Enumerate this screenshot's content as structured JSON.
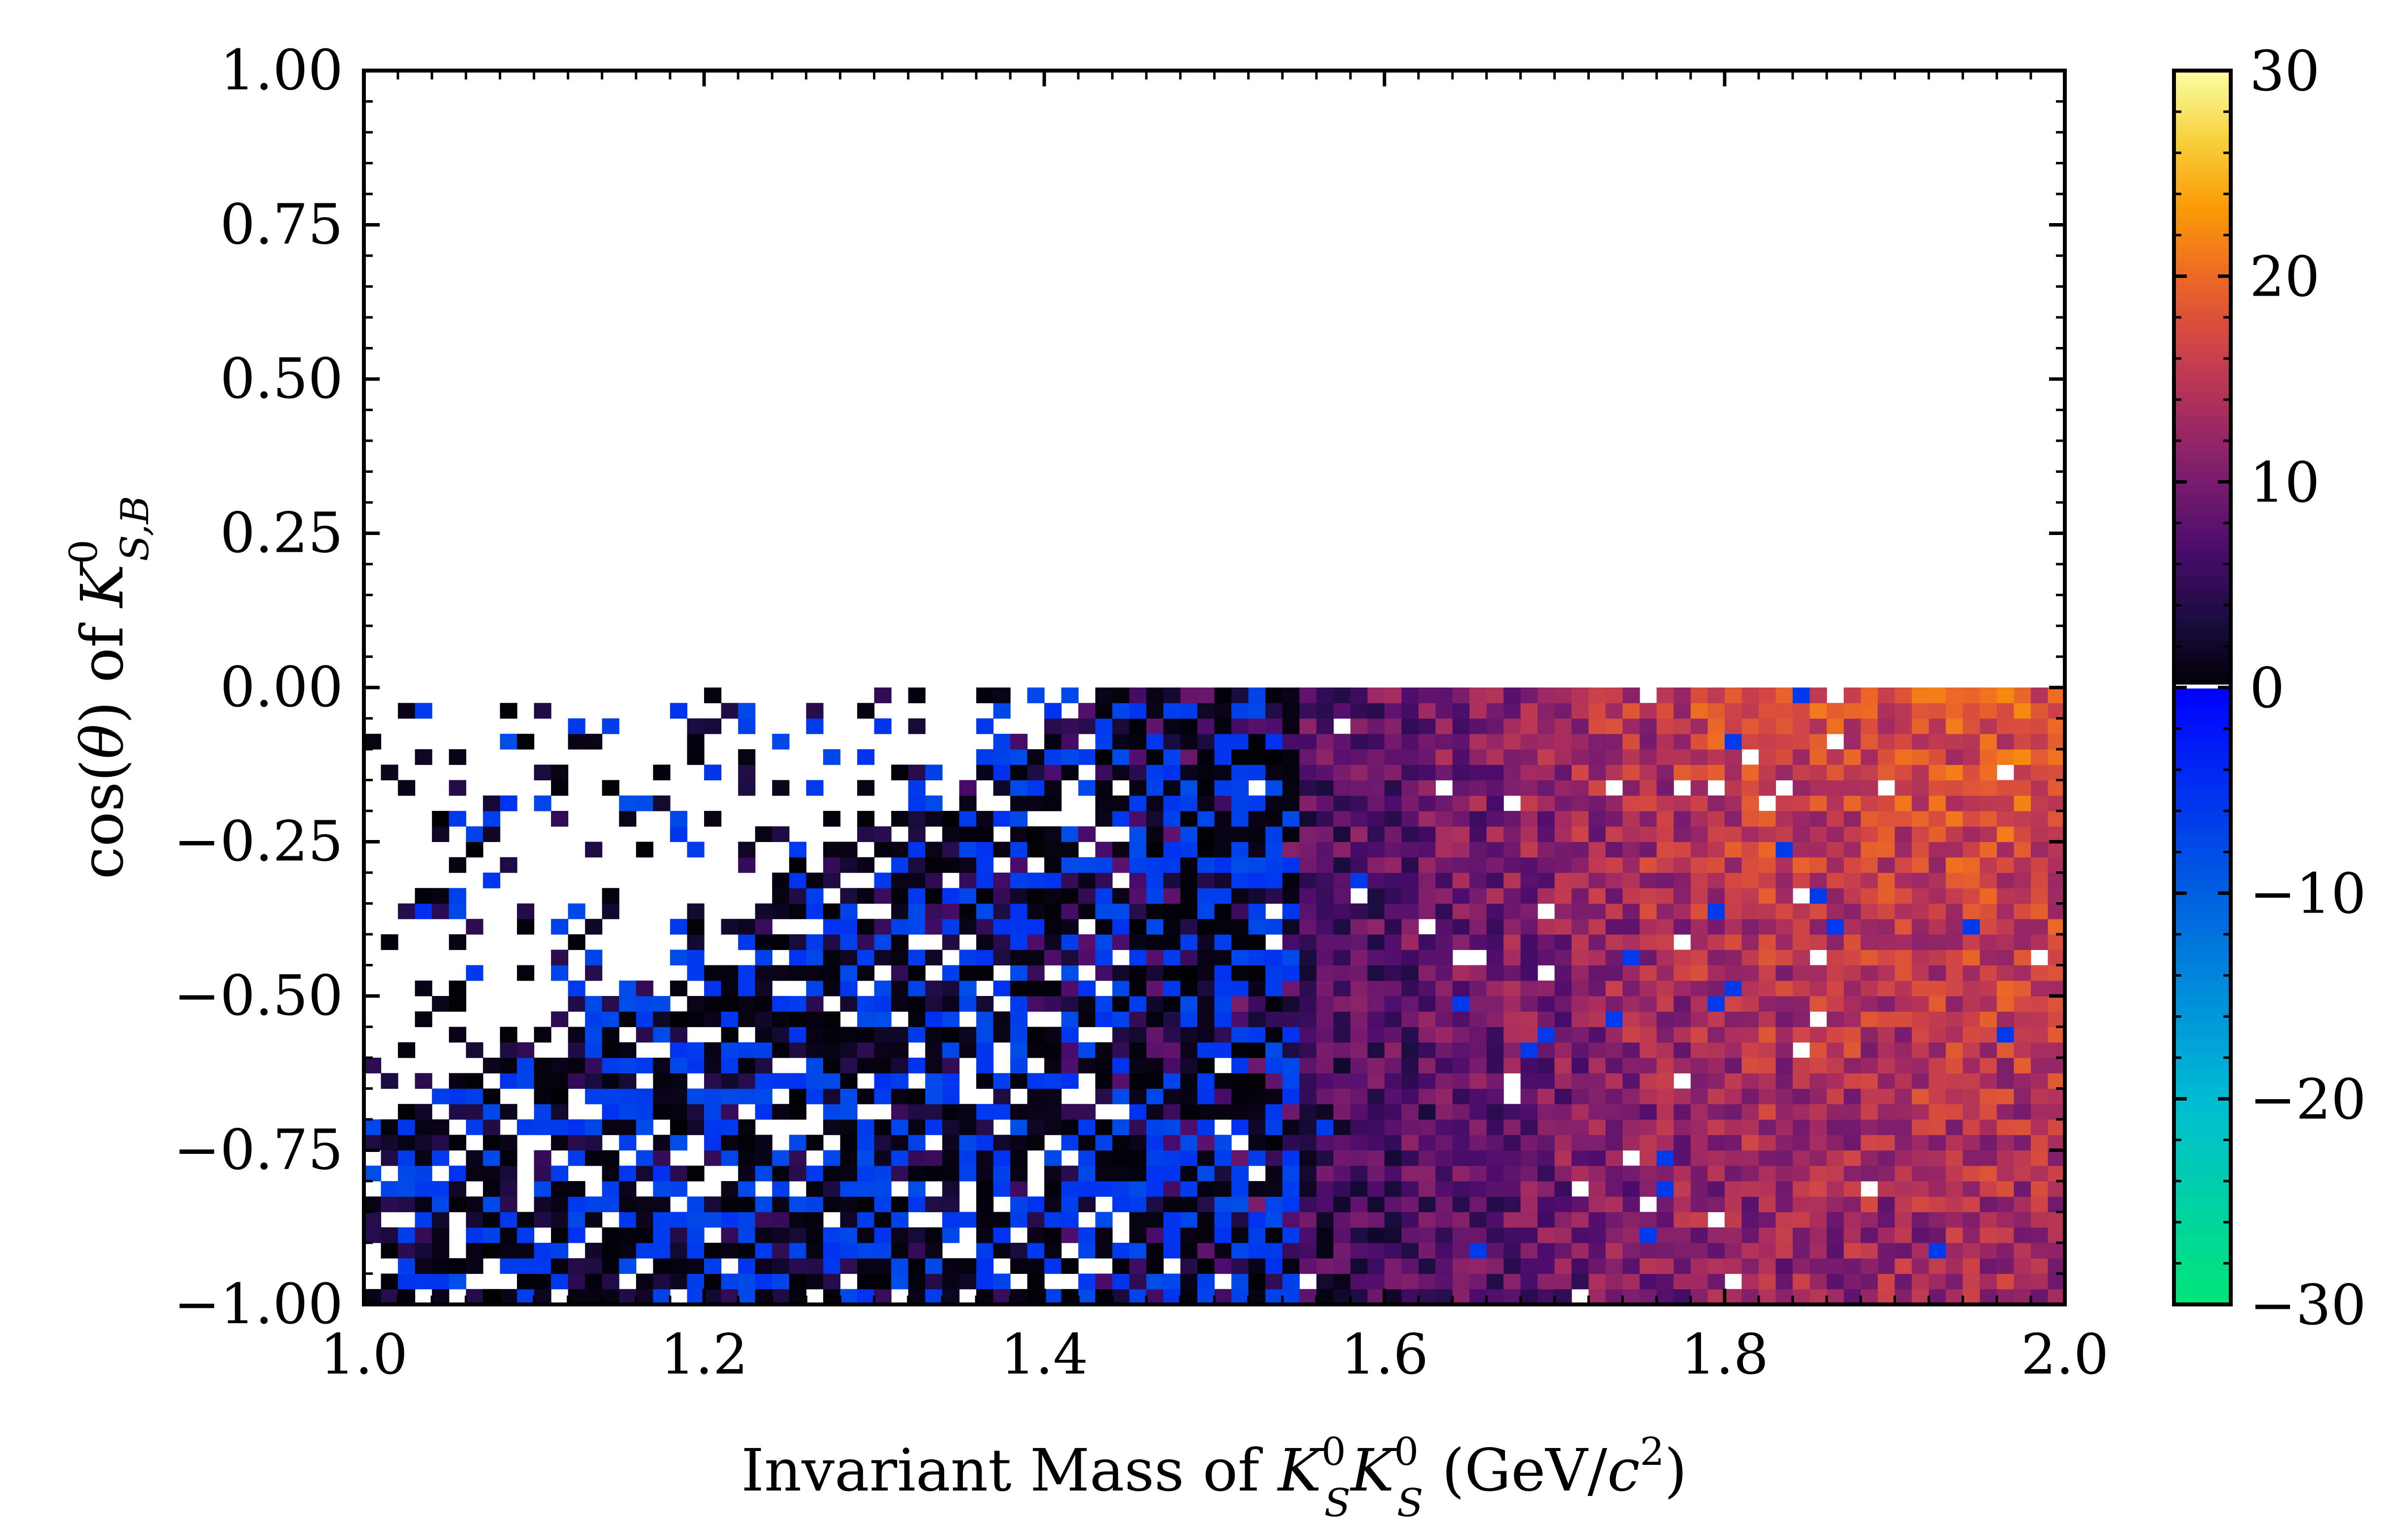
{
  "chart_data": {
    "type": "heatmap",
    "title": "",
    "xlabel": {
      "parts": [
        "Invariant Mass of ",
        "K",
        "0",
        "S",
        "K",
        "0",
        "S",
        " (GeV/",
        "c",
        "2",
        ")"
      ]
    },
    "ylabel": {
      "parts": [
        "cos(",
        "θ",
        ") of ",
        "K",
        "0",
        "S,B"
      ]
    },
    "xlim": [
      1.0,
      2.0
    ],
    "ylim": [
      -1.0,
      1.0
    ],
    "x_ticks": [
      1.0,
      1.2,
      1.4,
      1.6,
      1.8,
      2.0
    ],
    "x_tick_labels": [
      "1.0",
      "1.2",
      "1.4",
      "1.6",
      "1.8",
      "2.0"
    ],
    "y_ticks": [
      1.0,
      0.75,
      0.5,
      0.25,
      0.0,
      -0.25,
      -0.5,
      -0.75,
      -1.0
    ],
    "y_tick_labels": [
      "1.00",
      "0.75",
      "0.50",
      "0.25",
      "0.00",
      "−0.25",
      "−0.50",
      "−0.75",
      "−1.00"
    ],
    "bins": {
      "nx": 100,
      "ny": 40,
      "x_range": [
        1.0,
        2.0
      ],
      "y_range": [
        -1.0,
        0.0
      ]
    },
    "filled_y_range": [
      -1.0,
      0.0
    ],
    "colorbar": {
      "range": [
        -30,
        30
      ],
      "ticks": [
        30,
        20,
        10,
        0,
        -10,
        -20,
        -30
      ],
      "tick_labels": [
        "30",
        "20",
        "10",
        "0",
        "−10",
        "−20",
        "−30"
      ],
      "negative_colors": [
        "#00e676",
        "#00bcd4",
        "#0060e0",
        "#0000ff"
      ],
      "positive_colors": [
        "#000004",
        "#1b0c41",
        "#4a0c6b",
        "#781c6d",
        "#a52c60",
        "#cf4446",
        "#ed6925",
        "#fb9b06",
        "#f7d13d",
        "#fcffa4"
      ]
    },
    "approx_mean_by_x": [
      {
        "x": 1.0,
        "mean": 0
      },
      {
        "x": 1.3,
        "mean": 0.5
      },
      {
        "x": 1.45,
        "mean": 3
      },
      {
        "x": 1.6,
        "mean": 8
      },
      {
        "x": 1.8,
        "mean": 15
      },
      {
        "x": 2.0,
        "mean": 17
      }
    ],
    "notes_visible": "cells drawn only for cos(θ) between -1 and 0; empty above 0"
  }
}
